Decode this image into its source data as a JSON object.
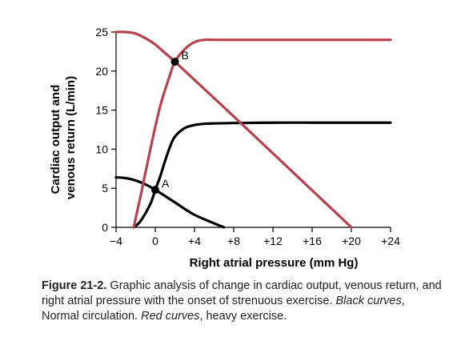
{
  "chart_data": {
    "type": "line",
    "xlabel": "Right atrial pressure (mm Hg)",
    "ylabel_lines": [
      "Cardiac output and",
      "venous return (L/min)"
    ],
    "xlim": [
      -4,
      24
    ],
    "ylim": [
      0,
      25
    ],
    "x_ticks": [
      -4,
      0,
      4,
      8,
      12,
      16,
      20,
      24
    ],
    "x_tick_labels": [
      "−4",
      "0",
      "+4",
      "+8",
      "+12",
      "+16",
      "+20",
      "+24"
    ],
    "y_ticks": [
      0,
      5,
      10,
      15,
      20,
      25
    ],
    "y_tick_labels": [
      "0",
      "5",
      "10",
      "15",
      "20",
      "25"
    ],
    "grid": false,
    "colors": {
      "normal": "#000000",
      "exercise": "#b8434f"
    },
    "series": [
      {
        "key": "normal_cardiac_output",
        "color_key": "normal",
        "x": [
          -2.2,
          -1.5,
          -0.5,
          0,
          0.5,
          1,
          1.5,
          2,
          3,
          4,
          5,
          6,
          8,
          12,
          16,
          20,
          24
        ],
        "y": [
          0,
          0.8,
          3.0,
          4.8,
          6.5,
          8.5,
          10.3,
          11.6,
          12.7,
          13.1,
          13.25,
          13.3,
          13.35,
          13.4,
          13.4,
          13.4,
          13.4
        ]
      },
      {
        "key": "normal_venous_return",
        "color_key": "normal",
        "x": [
          -4,
          -3,
          -2,
          -1,
          0,
          2,
          4,
          7
        ],
        "y": [
          6.4,
          6.3,
          6.0,
          5.5,
          4.8,
          3.2,
          1.6,
          0
        ]
      },
      {
        "key": "exercise_cardiac_output",
        "color_key": "exercise",
        "x": [
          -2.2,
          -1.5,
          -0.5,
          0.5,
          1.5,
          2,
          3,
          4,
          5,
          6,
          8,
          12,
          16,
          20,
          24
        ],
        "y": [
          0,
          4,
          10,
          15.5,
          19.5,
          21.2,
          22.8,
          23.7,
          24,
          24,
          24,
          24,
          24,
          24,
          24
        ]
      },
      {
        "key": "exercise_venous_return",
        "color_key": "exercise",
        "x": [
          -4,
          -3,
          -2,
          -1,
          0,
          1,
          2,
          8,
          14,
          20
        ],
        "y": [
          25,
          25,
          24.8,
          24.2,
          23.4,
          22.3,
          21.2,
          14.2,
          7.1,
          0
        ]
      }
    ],
    "points": [
      {
        "label": "A",
        "x": 0,
        "y": 4.8
      },
      {
        "label": "B",
        "x": 2,
        "y": 21.2
      }
    ]
  },
  "caption": {
    "figure_label": "Figure 21-2.",
    "text_main": " Graphic analysis of change in cardiac output, venous return, and right atrial pressure with the onset of strenuous exercise. ",
    "black_label": "Black curves",
    "black_text": ", Normal circulation. ",
    "red_label": "Red curves",
    "red_text": ", heavy exercise."
  }
}
